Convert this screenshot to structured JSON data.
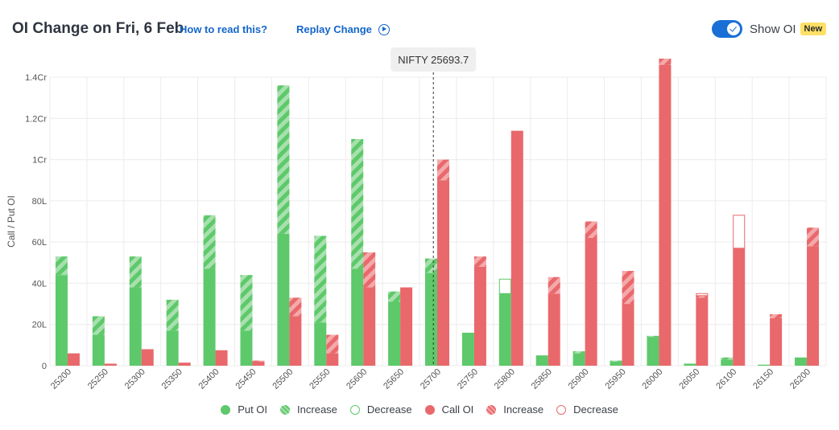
{
  "header": {
    "title": "OI Change on Fri, 6 Feb",
    "how_to_read": "How to read this?",
    "replay": "Replay Change",
    "toggle_label": "Show OI",
    "badge": "New"
  },
  "colors": {
    "put": "#5dc96a",
    "put_light": "#a8e0ae",
    "call": "#e9686b",
    "call_light": "#f4a9ab",
    "grid": "#ececec",
    "accent": "#1a6fd6"
  },
  "chart_data": {
    "type": "bar",
    "ylabel": "Call / Put OI",
    "ylim": [
      0,
      1.4
    ],
    "y_unit": "Cr",
    "yticks": [
      "0",
      "20L",
      "40L",
      "60L",
      "80L",
      "1Cr",
      "1.2Cr",
      "1.4Cr"
    ],
    "spot_label": "NIFTY 25693.7",
    "spot": 25693.7,
    "categories": [
      "25200",
      "25250",
      "25300",
      "25350",
      "25400",
      "25450",
      "25500",
      "25550",
      "25600",
      "25650",
      "25700",
      "25750",
      "25800",
      "25850",
      "25900",
      "25950",
      "26000",
      "26050",
      "26100",
      "26150",
      "26200"
    ],
    "series": [
      {
        "name": "Put OI",
        "values": [
          0.44,
          0.15,
          0.38,
          0.17,
          0.47,
          0.17,
          0.64,
          0.21,
          0.47,
          0.31,
          0.45,
          0.16,
          0.35,
          0.05,
          0.06,
          0.02,
          0.14,
          0.01,
          0.03,
          0.005,
          0.04
        ]
      },
      {
        "name": "Increase",
        "values": [
          0.09,
          0.09,
          0.15,
          0.15,
          0.26,
          0.27,
          0.72,
          0.42,
          0.63,
          0.05,
          0.07,
          0,
          0,
          0,
          0.01,
          0.005,
          0.005,
          0,
          0.01,
          0,
          0
        ]
      },
      {
        "name": "Decrease",
        "values": [
          0,
          0,
          0,
          0,
          0,
          0,
          0,
          0,
          0,
          0,
          0,
          0,
          0.07,
          0,
          0,
          0,
          0,
          0,
          0,
          0,
          0
        ]
      },
      {
        "name": "Call OI",
        "values": [
          0.06,
          0.01,
          0.08,
          0.015,
          0.075,
          0.02,
          0.24,
          0.06,
          0.38,
          0.38,
          0.9,
          0.48,
          1.14,
          0.35,
          0.62,
          0.3,
          1.46,
          0.33,
          0.57,
          0.23,
          0.58
        ]
      },
      {
        "name": "Increase",
        "values": [
          0,
          0,
          0,
          0,
          0,
          0.005,
          0.09,
          0.09,
          0.17,
          0,
          0.1,
          0.05,
          0,
          0.08,
          0.08,
          0.16,
          0.03,
          0.01,
          0,
          0.02,
          0.09
        ]
      },
      {
        "name": "Decrease",
        "values": [
          0,
          0,
          0,
          0,
          0,
          0,
          0,
          0,
          0,
          0,
          0,
          0,
          0,
          0,
          0,
          0,
          0,
          0.01,
          0.16,
          0,
          0
        ]
      }
    ],
    "legend": [
      "Put OI",
      "Increase",
      "Decrease",
      "Call OI",
      "Increase",
      "Decrease"
    ],
    "legend_placement": "bottom",
    "grid": true
  }
}
